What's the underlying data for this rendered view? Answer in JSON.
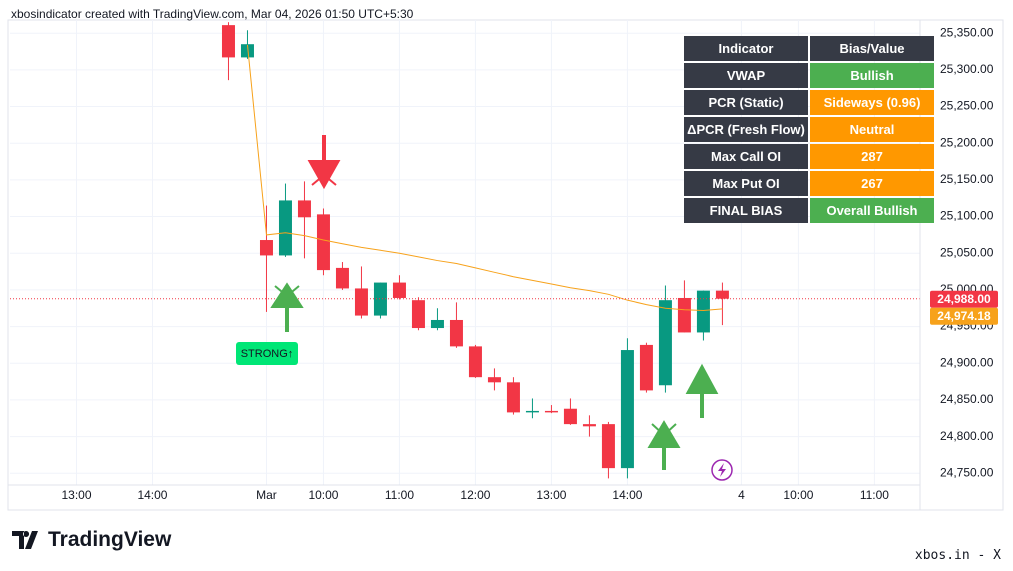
{
  "header": "xbosindicator created with TradingView.com, Mar 04, 2026 01:50 UTC+5:30",
  "footer": {
    "logo": "TradingView",
    "credit": "xbos.in - X"
  },
  "chart_data": {
    "type": "candlestick",
    "x": [
      -2,
      -1,
      0,
      1,
      2,
      3,
      4,
      5,
      6,
      7,
      8,
      9,
      10,
      11,
      12,
      13,
      14,
      15,
      16,
      17,
      18,
      19,
      20,
      21,
      22,
      23,
      24
    ],
    "open": [
      25361,
      25317,
      25068,
      25047,
      25122,
      25103,
      25030,
      25002,
      24965,
      25010,
      24986,
      24948,
      24959,
      24923,
      24881,
      24874,
      24833,
      24835,
      24838,
      24817,
      24817,
      24757,
      24925,
      24870,
      24989,
      24942,
      24999
    ],
    "high": [
      25365,
      25354,
      25115,
      25145,
      25148,
      25111,
      25038,
      25032,
      25010,
      25020,
      24990,
      24975,
      24983,
      24925,
      24893,
      24881,
      24852,
      24843,
      24852,
      24829,
      24820,
      24934,
      24928,
      25006,
      25013,
      24999,
      25010
    ],
    "low": [
      25286,
      25315,
      24970,
      25045,
      25043,
      25020,
      25000,
      24961,
      24961,
      24987,
      24945,
      24945,
      24921,
      24880,
      24863,
      24830,
      24825,
      24832,
      24816,
      24800,
      24743,
      24743,
      24860,
      24860,
      24942,
      24931,
      24952
    ],
    "close": [
      25317,
      25335,
      25047,
      25122,
      25099,
      25027,
      25002,
      24965,
      25010,
      24989,
      24948,
      24959,
      24923,
      24881,
      24874,
      24833,
      24835,
      24833,
      24817,
      24814,
      24757,
      24918,
      24863,
      24986,
      24942,
      24999,
      24988
    ],
    "up_color": "#089981",
    "down_color": "#f23645",
    "series": [
      {
        "name": "VWAP",
        "color": "#f7a21b",
        "values": [
          null,
          25334,
          25075,
          25078,
          25074,
          25068,
          25063,
          25058,
          25054,
          25050,
          25045,
          25040,
          25036,
          25030,
          25024,
          25018,
          25013,
          25008,
          25003,
          24999,
          24994,
          24986,
          24980,
          24975,
          24973,
          24972,
          24974.18
        ]
      }
    ],
    "price_labels": [
      {
        "value": 24988,
        "label": "24,988.00",
        "color": "#f23645"
      },
      {
        "value": 24974.18,
        "label": "24,974.18",
        "color": "#f7a21b"
      }
    ],
    "xlim": [
      -13.5,
      34.4
    ],
    "xticks": [
      {
        "value": -10,
        "label": "13:00"
      },
      {
        "value": -6,
        "label": "14:00"
      },
      {
        "value": 0,
        "label": "Mar"
      },
      {
        "value": 3,
        "label": "10:00"
      },
      {
        "value": 7,
        "label": "11:00"
      },
      {
        "value": 11,
        "label": "12:00"
      },
      {
        "value": 15,
        "label": "13:00"
      },
      {
        "value": 19,
        "label": "14:00"
      },
      {
        "value": 25,
        "label": "4"
      },
      {
        "value": 28,
        "label": "10:00"
      },
      {
        "value": 32,
        "label": "11:00"
      }
    ],
    "ylim": [
      24734,
      25368
    ],
    "yticks": [
      {
        "value": 24750,
        "label": "24,750.00"
      },
      {
        "value": 24800,
        "label": "24,800.00"
      },
      {
        "value": 24850,
        "label": "24,850.00"
      },
      {
        "value": 24900,
        "label": "24,900.00"
      },
      {
        "value": 24950,
        "label": "24,950.00"
      },
      {
        "value": 25000,
        "label": "25,000.00"
      },
      {
        "value": 25050,
        "label": "25,050.00"
      },
      {
        "value": 25100,
        "label": "25,100.00"
      },
      {
        "value": 25150,
        "label": "25,150.00"
      },
      {
        "value": 25200,
        "label": "25,200.00"
      },
      {
        "value": 25250,
        "label": "25,250.00"
      },
      {
        "value": 25300,
        "label": "25,300.00"
      },
      {
        "value": 25350,
        "label": "25,350.00"
      }
    ],
    "grid": true,
    "annotations": [
      "STRONG↑"
    ]
  },
  "table": {
    "header": [
      "Indicator",
      "Bias/Value"
    ],
    "rows": [
      [
        "VWAP",
        "Bullish"
      ],
      [
        "PCR (Static)",
        "Sideways (0.96)"
      ],
      [
        "ΔPCR (Fresh Flow)",
        "Neutral"
      ],
      [
        "Max Call OI",
        287
      ],
      [
        "Max Put OI",
        267
      ],
      [
        "FINAL BIAS",
        "Overall Bullish"
      ]
    ],
    "value_colors": [
      "#4caf50",
      "#ff9800",
      "#ff9800",
      "#ff9800",
      "#ff9800",
      "#4caf50"
    ]
  }
}
